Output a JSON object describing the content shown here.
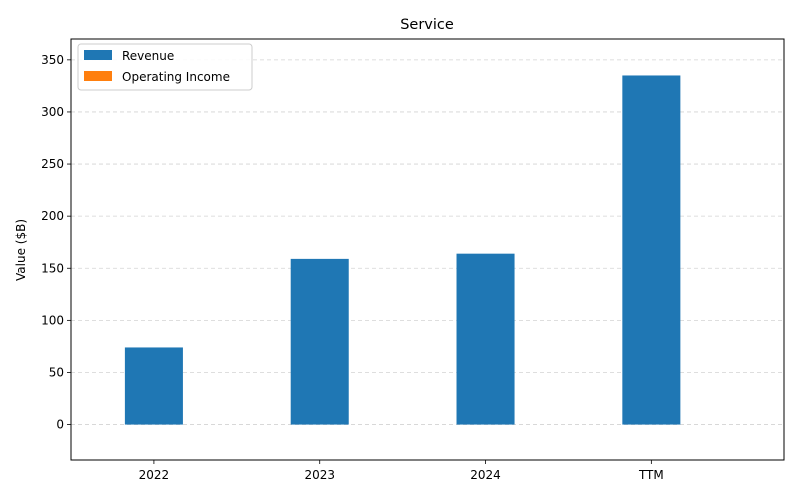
{
  "chart_data": {
    "type": "bar",
    "title": "Service",
    "xlabel": "",
    "ylabel": "Value ($B)",
    "categories": [
      "2022",
      "2023",
      "2024",
      "TTM"
    ],
    "series": [
      {
        "name": "Revenue",
        "color": "#1f77b4",
        "values": [
          74,
          159,
          164,
          335
        ]
      },
      {
        "name": "Operating Income",
        "color": "#ff7f0e",
        "values": [
          0,
          0,
          0,
          0
        ]
      }
    ],
    "ylim": [
      -34,
      370
    ],
    "yticks": [
      0,
      50,
      100,
      150,
      200,
      250,
      300,
      350
    ],
    "grid": true,
    "grid_axis": "y",
    "legend_position": "top-left"
  }
}
